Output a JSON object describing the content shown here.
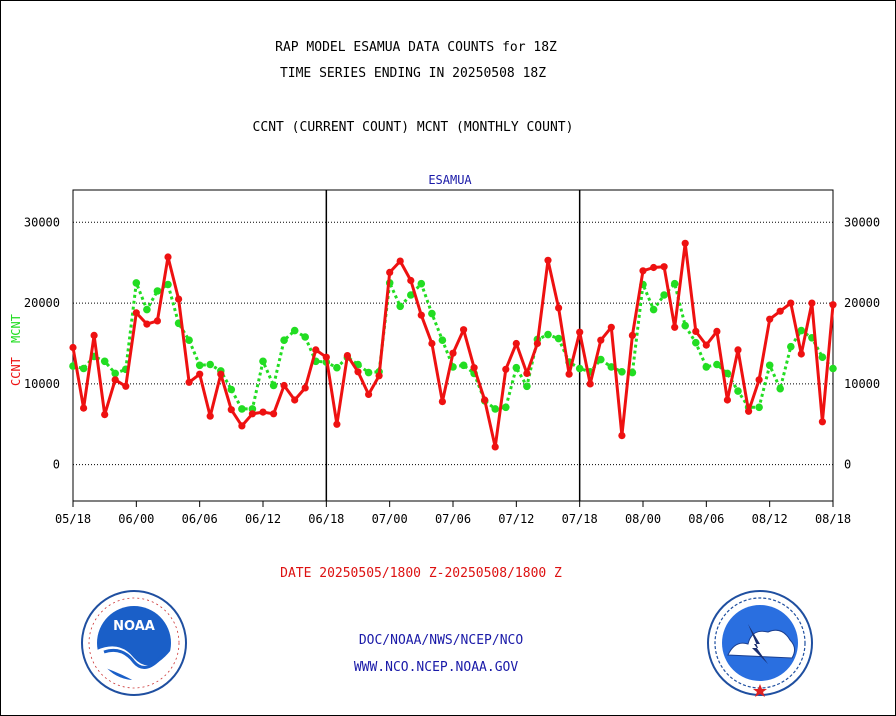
{
  "header": {
    "line1": "RAP MODEL ESAMUA DATA COUNTS for 18Z",
    "line2": "TIME SERIES ENDING IN 20250508 18Z",
    "line3": "CCNT (CURRENT COUNT) MCNT (MONTHLY COUNT)"
  },
  "footer": {
    "date_range": "DATE 20250505/1800 Z-20250508/1800 Z",
    "org": "DOC/NOAA/NWS/NCEP/NCO",
    "url": "WWW.NCO.NCEP.NOAA.GOV"
  },
  "logos": {
    "left_text": "NOAA",
    "left_ring": "NATIONAL OCEANIC AND ATMOSPHERIC ADMINISTRATION · U.S. DEPARTMENT OF COMMERCE",
    "right_ring": "NATIONAL WEATHER SERVICE"
  },
  "colors": {
    "ccnt": "#ee1111",
    "mcnt": "#22dd22",
    "title_blue": "#1a1aa8",
    "date_red": "#dd1111"
  },
  "chart_data": {
    "type": "line",
    "title": "ESAMUA",
    "ylabel_ccnt": "CCNT",
    "ylabel_mcnt": "MCNT",
    "ylim": [
      -4500,
      34000
    ],
    "yticks": [
      0,
      10000,
      20000,
      30000
    ],
    "xlim": [
      0,
      72
    ],
    "xtick_positions": [
      0,
      6,
      12,
      18,
      24,
      30,
      36,
      42,
      48,
      54,
      60,
      66,
      72
    ],
    "xtick_labels": [
      "05/18",
      "06/00",
      "06/06",
      "06/12",
      "06/18",
      "07/00",
      "07/06",
      "07/12",
      "07/18",
      "08/00",
      "08/06",
      "08/12",
      "08/18"
    ],
    "day_separators": [
      24,
      48
    ],
    "grid": true,
    "series": [
      {
        "name": "CCNT",
        "x": [
          0,
          1,
          2,
          3,
          4,
          5,
          6,
          7,
          8,
          9,
          10,
          11,
          12,
          13,
          14,
          15,
          16,
          17,
          18,
          19,
          20,
          21,
          22,
          23,
          24,
          25,
          26,
          27,
          28,
          29,
          30,
          31,
          32,
          33,
          34,
          35,
          36,
          37,
          38,
          39,
          40,
          41,
          42,
          43,
          44,
          45,
          46,
          47,
          48,
          49,
          50,
          51,
          52,
          53,
          54,
          55,
          56,
          57,
          58,
          59,
          60,
          61,
          62,
          63,
          64,
          65,
          66,
          67,
          68,
          69,
          70,
          71,
          72
        ],
        "values": [
          14500,
          7000,
          16000,
          6200,
          10500,
          9700,
          18800,
          17400,
          17800,
          25700,
          20500,
          10200,
          11200,
          6000,
          11200,
          6800,
          4800,
          6300,
          6500,
          6300,
          9800,
          8000,
          9500,
          14200,
          13300,
          5000,
          13500,
          11500,
          8700,
          11000,
          23800,
          25200,
          22800,
          18500,
          15000,
          7800,
          13800,
          16700,
          12000,
          8000,
          2200,
          11800,
          15000,
          11300,
          15000,
          25300,
          19400,
          11200,
          16400,
          10000,
          15400,
          17000,
          3600,
          16000,
          24000,
          24400,
          24500,
          17000,
          27400,
          16500,
          14800,
          16500,
          8000,
          14200,
          6600,
          10500,
          18000,
          19000,
          20000,
          13700,
          20000,
          5300,
          19800
        ]
      },
      {
        "name": "MCNT",
        "x": [
          0,
          1,
          2,
          3,
          4,
          5,
          6,
          7,
          8,
          9,
          10,
          11,
          12,
          13,
          14,
          15,
          16,
          17,
          18,
          19,
          20,
          21,
          22,
          23,
          24,
          25,
          26,
          27,
          28,
          29,
          30,
          31,
          32,
          33,
          34,
          35,
          36,
          37,
          38,
          39,
          40,
          41,
          42,
          43,
          44,
          45,
          46,
          47,
          48,
          49,
          50,
          51,
          52,
          53,
          54,
          55,
          56,
          57,
          58,
          59,
          60,
          61,
          62,
          63,
          64,
          65,
          66,
          67,
          68,
          69,
          70,
          71,
          72
        ],
        "values": [
          12200,
          11900,
          13400,
          12800,
          11300,
          11800,
          22500,
          19200,
          21500,
          22300,
          17500,
          15400,
          12300,
          12400,
          11600,
          9300,
          6900,
          6900,
          12800,
          9800,
          15400,
          16600,
          15800,
          12800,
          12700,
          12000,
          13300,
          12400,
          11400,
          11500,
          22500,
          19600,
          21000,
          22400,
          18700,
          15400,
          12100,
          12300,
          11300,
          7900,
          6900,
          7100,
          12000,
          9700,
          15500,
          16100,
          15600,
          12700,
          11900,
          11500,
          13000,
          12100,
          11500,
          11400,
          22300,
          19200,
          21000,
          22400,
          17200,
          15100,
          12100,
          12400,
          11300,
          9100,
          7100,
          7100,
          12300,
          9400,
          14600,
          16600,
          15700,
          13300,
          11900
        ]
      }
    ]
  }
}
